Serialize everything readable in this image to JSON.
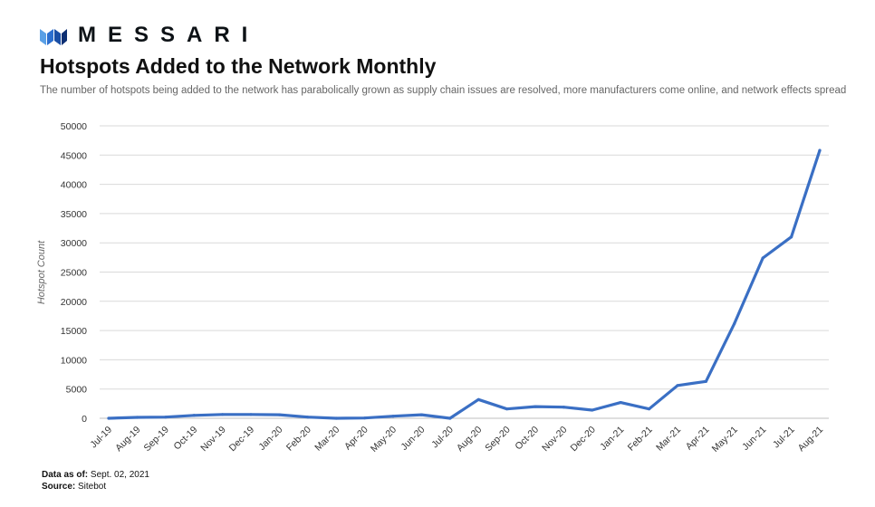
{
  "brand": {
    "name": "MESSARI",
    "logo_icon": "messari-logo-icon",
    "accent": "#2a5fb2"
  },
  "header": {
    "title": "Hotspots Added to the Network Monthly",
    "subtitle": "The number of hotspots being added to the network has parabolically grown as supply chain issues are resolved, more manufacturers come online, and network effects spread"
  },
  "footer": {
    "data_label": "Data as of:",
    "data_value": "Sept. 02, 2021",
    "source_label": "Source:",
    "source_value": "Sitebot"
  },
  "chart_data": {
    "type": "line",
    "title": "Hotspots Added to the Network Monthly",
    "xlabel": "",
    "ylabel": "Hotspot Count",
    "ylim": [
      0,
      50000
    ],
    "yticks": [
      0,
      5000,
      10000,
      15000,
      20000,
      25000,
      30000,
      35000,
      40000,
      45000,
      50000
    ],
    "grid": true,
    "legend": "none",
    "color": "#3a6fc4",
    "categories": [
      "Jul-19",
      "Aug-19",
      "Sep-19",
      "Oct-19",
      "Nov-19",
      "Dec-19",
      "Jan-20",
      "Feb-20",
      "Mar-20",
      "Apr-20",
      "May-20",
      "Jun-20",
      "Jul-20",
      "Aug-20",
      "Sep-20",
      "Oct-20",
      "Nov-20",
      "Dec-20",
      "Jan-21",
      "Feb-21",
      "Mar-21",
      "Apr-21",
      "May-21",
      "Jun-21",
      "Jul-21",
      "Aug-21"
    ],
    "values": [
      0,
      150,
      200,
      500,
      650,
      650,
      600,
      200,
      0,
      50,
      350,
      600,
      0,
      3200,
      1600,
      2000,
      1900,
      1400,
      2700,
      1600,
      5600,
      6300,
      16200,
      27400,
      31000,
      45800
    ]
  }
}
